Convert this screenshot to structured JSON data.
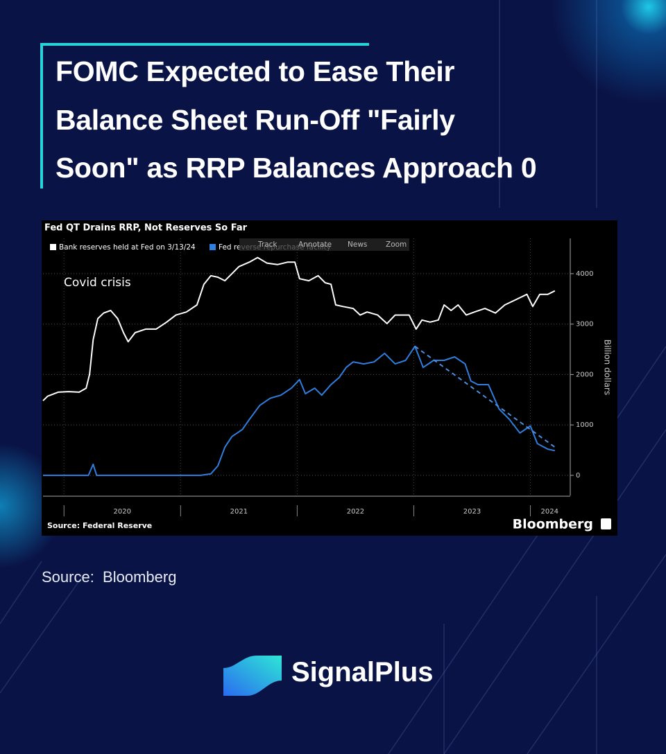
{
  "header": {
    "title_lines": [
      "FOMC Expected to Ease Their",
      "Balance Sheet Run-Off \"Fairly",
      "Soon\" as RRP Balances Approach 0"
    ]
  },
  "chart_data": {
    "type": "line",
    "title": "Fed QT Drains RRP, Not Reserves So Far",
    "toolbar": [
      "Track",
      "Annotate",
      "News",
      "Zoom"
    ],
    "annotation": "Covid crisis",
    "y_label": "Billion dollars",
    "source": "Source: Federal Reserve",
    "brand": "Bloomberg",
    "xlim": [
      2019.82,
      2024.33
    ],
    "xticks": [
      2020,
      2021,
      2022,
      2023,
      2024
    ],
    "ylim": [
      -400,
      4700
    ],
    "yticks": [
      0,
      1000,
      2000,
      3000,
      4000
    ],
    "grid": true,
    "series": [
      {
        "name": "Bank reserves held at Fed on 3/13/24",
        "color": "#ffffff",
        "x": [
          2019.82,
          2019.86,
          2019.95,
          2020.04,
          2020.13,
          2020.19,
          2020.22,
          2020.25,
          2020.29,
          2020.34,
          2020.4,
          2020.46,
          2020.51,
          2020.55,
          2020.61,
          2020.7,
          2020.79,
          2020.88,
          2020.96,
          2021.05,
          2021.14,
          2021.2,
          2021.26,
          2021.32,
          2021.38,
          2021.44,
          2021.5,
          2021.59,
          2021.66,
          2021.74,
          2021.83,
          2021.92,
          2021.98,
          2022.02,
          2022.1,
          2022.18,
          2022.24,
          2022.29,
          2022.33,
          2022.39,
          2022.48,
          2022.54,
          2022.6,
          2022.69,
          2022.77,
          2022.84,
          2022.96,
          2023.02,
          2023.07,
          2023.14,
          2023.21,
          2023.26,
          2023.32,
          2023.38,
          2023.45,
          2023.52,
          2023.61,
          2023.7,
          2023.78,
          2023.88,
          2023.97,
          2024.02,
          2024.08,
          2024.15,
          2024.21
        ],
        "values": [
          1480,
          1570,
          1650,
          1660,
          1650,
          1730,
          2010,
          2690,
          3110,
          3220,
          3270,
          3110,
          2830,
          2650,
          2830,
          2900,
          2900,
          3040,
          3180,
          3240,
          3380,
          3790,
          3960,
          3930,
          3860,
          4000,
          4140,
          4230,
          4320,
          4210,
          4180,
          4230,
          4230,
          3900,
          3860,
          3960,
          3820,
          3790,
          3380,
          3350,
          3310,
          3180,
          3240,
          3180,
          3010,
          3180,
          3180,
          2900,
          3080,
          3040,
          3080,
          3380,
          3270,
          3380,
          3180,
          3240,
          3310,
          3220,
          3380,
          3490,
          3590,
          3350,
          3590,
          3590,
          3660
        ]
      },
      {
        "name": "Fed reverse repurchase facility",
        "color": "#2f7fe0",
        "x": [
          2019.82,
          2020.04,
          2020.21,
          2020.25,
          2020.28,
          2020.64,
          2020.99,
          2021.17,
          2021.26,
          2021.32,
          2021.38,
          2021.44,
          2021.53,
          2021.59,
          2021.68,
          2021.77,
          2021.86,
          2021.95,
          2022.02,
          2022.07,
          2022.15,
          2022.21,
          2022.29,
          2022.36,
          2022.42,
          2022.48,
          2022.57,
          2022.66,
          2022.75,
          2022.84,
          2022.93,
          2023.01,
          2023.08,
          2023.17,
          2023.26,
          2023.35,
          2023.44,
          2023.49,
          2023.55,
          2023.64,
          2023.73,
          2023.82,
          2023.91,
          2024.0,
          2024.06,
          2024.15,
          2024.21
        ],
        "values": [
          0,
          0,
          0,
          220,
          0,
          0,
          0,
          0,
          30,
          190,
          560,
          770,
          910,
          1110,
          1390,
          1530,
          1590,
          1730,
          1900,
          1620,
          1730,
          1590,
          1800,
          1940,
          2140,
          2250,
          2210,
          2250,
          2420,
          2210,
          2280,
          2560,
          2140,
          2280,
          2280,
          2350,
          2210,
          1870,
          1800,
          1800,
          1320,
          1110,
          840,
          980,
          630,
          520,
          490
        ]
      }
    ],
    "trendline": {
      "x": [
        2023.01,
        2024.21
      ],
      "values": [
        2560,
        560
      ],
      "color": "#4a90e2"
    }
  },
  "footer": {
    "source": "Source:  Bloomberg",
    "brand": "SignalPlus"
  }
}
